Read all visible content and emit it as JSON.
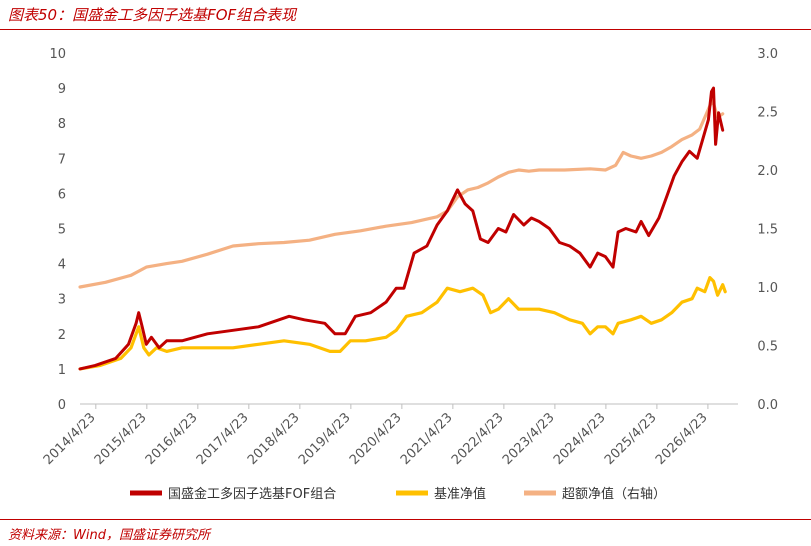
{
  "header": {
    "title": "图表50：国盛金工多因子选基FOF组合表现"
  },
  "footer": {
    "source": "资料来源：Wind，国盛证券研究所"
  },
  "chart_data": {
    "type": "line",
    "title": "",
    "xlabel": "",
    "ylabel": "",
    "x_ticks": [
      "2014/4/23",
      "2015/4/23",
      "2016/4/23",
      "2017/4/23",
      "2018/4/23",
      "2019/4/23",
      "2020/4/23",
      "2021/4/23",
      "2022/4/23",
      "2023/4/23",
      "2024/4/23",
      "2025/4/23",
      "2026/4/23"
    ],
    "y_left": {
      "min": 0,
      "max": 10,
      "ticks": [
        "0",
        "1",
        "2",
        "3",
        "4",
        "5",
        "6",
        "7",
        "8",
        "9",
        "10"
      ]
    },
    "y_right": {
      "min": 0,
      "max": 3.0,
      "ticks": [
        "0.0",
        "0.5",
        "1.0",
        "1.5",
        "2.0",
        "2.5",
        "3.0"
      ]
    },
    "x_range": [
      2014.0,
      2026.9
    ],
    "series": [
      {
        "name": "国盛金工多因子选基FOF组合",
        "axis": "left",
        "color": "#c00000",
        "points": [
          [
            2014.0,
            1.0
          ],
          [
            2014.3,
            1.1
          ],
          [
            2014.7,
            1.3
          ],
          [
            2014.95,
            1.7
          ],
          [
            2015.1,
            2.3
          ],
          [
            2015.15,
            2.6
          ],
          [
            2015.22,
            2.2
          ],
          [
            2015.3,
            1.7
          ],
          [
            2015.4,
            1.9
          ],
          [
            2015.55,
            1.6
          ],
          [
            2015.7,
            1.8
          ],
          [
            2016.0,
            1.8
          ],
          [
            2016.5,
            2.0
          ],
          [
            2017.0,
            2.1
          ],
          [
            2017.5,
            2.2
          ],
          [
            2017.9,
            2.4
          ],
          [
            2018.1,
            2.5
          ],
          [
            2018.4,
            2.4
          ],
          [
            2018.8,
            2.3
          ],
          [
            2019.0,
            2.0
          ],
          [
            2019.2,
            2.0
          ],
          [
            2019.4,
            2.5
          ],
          [
            2019.7,
            2.6
          ],
          [
            2020.0,
            2.9
          ],
          [
            2020.2,
            3.3
          ],
          [
            2020.35,
            3.3
          ],
          [
            2020.55,
            4.3
          ],
          [
            2020.8,
            4.5
          ],
          [
            2021.0,
            5.1
          ],
          [
            2021.2,
            5.5
          ],
          [
            2021.4,
            6.1
          ],
          [
            2021.55,
            5.7
          ],
          [
            2021.7,
            5.5
          ],
          [
            2021.85,
            4.7
          ],
          [
            2022.0,
            4.6
          ],
          [
            2022.2,
            5.0
          ],
          [
            2022.35,
            4.9
          ],
          [
            2022.5,
            5.4
          ],
          [
            2022.7,
            5.1
          ],
          [
            2022.85,
            5.3
          ],
          [
            2023.0,
            5.2
          ],
          [
            2023.2,
            5.0
          ],
          [
            2023.4,
            4.6
          ],
          [
            2023.6,
            4.5
          ],
          [
            2023.8,
            4.3
          ],
          [
            2024.0,
            3.9
          ],
          [
            2024.15,
            4.3
          ],
          [
            2024.3,
            4.2
          ],
          [
            2024.45,
            3.9
          ],
          [
            2024.55,
            4.9
          ],
          [
            2024.7,
            5.0
          ],
          [
            2024.9,
            4.9
          ],
          [
            2025.0,
            5.2
          ],
          [
            2025.15,
            4.8
          ],
          [
            2025.35,
            5.3
          ],
          [
            2025.5,
            5.9
          ],
          [
            2025.65,
            6.5
          ],
          [
            2025.8,
            6.9
          ],
          [
            2025.95,
            7.2
          ],
          [
            2026.1,
            7.0
          ],
          [
            2026.2,
            7.5
          ],
          [
            2026.32,
            8.1
          ],
          [
            2026.38,
            8.9
          ],
          [
            2026.42,
            9.0
          ],
          [
            2026.46,
            7.4
          ],
          [
            2026.52,
            8.3
          ],
          [
            2026.6,
            7.8
          ]
        ]
      },
      {
        "name": "基准净值",
        "axis": "left",
        "color": "#ffc000",
        "points": [
          [
            2014.0,
            1.0
          ],
          [
            2014.4,
            1.1
          ],
          [
            2014.8,
            1.3
          ],
          [
            2015.0,
            1.6
          ],
          [
            2015.15,
            2.2
          ],
          [
            2015.25,
            1.6
          ],
          [
            2015.35,
            1.4
          ],
          [
            2015.5,
            1.6
          ],
          [
            2015.7,
            1.5
          ],
          [
            2016.0,
            1.6
          ],
          [
            2016.5,
            1.6
          ],
          [
            2017.0,
            1.6
          ],
          [
            2017.5,
            1.7
          ],
          [
            2018.0,
            1.8
          ],
          [
            2018.5,
            1.7
          ],
          [
            2018.9,
            1.5
          ],
          [
            2019.1,
            1.5
          ],
          [
            2019.3,
            1.8
          ],
          [
            2019.6,
            1.8
          ],
          [
            2020.0,
            1.9
          ],
          [
            2020.2,
            2.1
          ],
          [
            2020.4,
            2.5
          ],
          [
            2020.7,
            2.6
          ],
          [
            2021.0,
            2.9
          ],
          [
            2021.2,
            3.3
          ],
          [
            2021.45,
            3.2
          ],
          [
            2021.7,
            3.3
          ],
          [
            2021.9,
            3.1
          ],
          [
            2022.05,
            2.6
          ],
          [
            2022.2,
            2.7
          ],
          [
            2022.4,
            3.0
          ],
          [
            2022.6,
            2.7
          ],
          [
            2022.8,
            2.7
          ],
          [
            2023.0,
            2.7
          ],
          [
            2023.3,
            2.6
          ],
          [
            2023.6,
            2.4
          ],
          [
            2023.85,
            2.3
          ],
          [
            2024.0,
            2.0
          ],
          [
            2024.15,
            2.2
          ],
          [
            2024.3,
            2.2
          ],
          [
            2024.45,
            2.0
          ],
          [
            2024.55,
            2.3
          ],
          [
            2024.8,
            2.4
          ],
          [
            2025.0,
            2.5
          ],
          [
            2025.2,
            2.3
          ],
          [
            2025.4,
            2.4
          ],
          [
            2025.6,
            2.6
          ],
          [
            2025.8,
            2.9
          ],
          [
            2026.0,
            3.0
          ],
          [
            2026.1,
            3.3
          ],
          [
            2026.25,
            3.2
          ],
          [
            2026.35,
            3.6
          ],
          [
            2026.42,
            3.5
          ],
          [
            2026.5,
            3.1
          ],
          [
            2026.6,
            3.4
          ],
          [
            2026.65,
            3.2
          ]
        ]
      },
      {
        "name": "超额净值（右轴）",
        "axis": "right",
        "color": "#f4b183",
        "points": [
          [
            2014.0,
            1.0
          ],
          [
            2014.5,
            1.04
          ],
          [
            2015.0,
            1.1
          ],
          [
            2015.3,
            1.17
          ],
          [
            2015.7,
            1.2
          ],
          [
            2016.0,
            1.22
          ],
          [
            2016.5,
            1.28
          ],
          [
            2017.0,
            1.35
          ],
          [
            2017.5,
            1.37
          ],
          [
            2018.0,
            1.38
          ],
          [
            2018.5,
            1.4
          ],
          [
            2019.0,
            1.45
          ],
          [
            2019.5,
            1.48
          ],
          [
            2020.0,
            1.52
          ],
          [
            2020.5,
            1.55
          ],
          [
            2020.8,
            1.58
          ],
          [
            2021.0,
            1.6
          ],
          [
            2021.2,
            1.65
          ],
          [
            2021.4,
            1.77
          ],
          [
            2021.6,
            1.83
          ],
          [
            2021.8,
            1.85
          ],
          [
            2022.0,
            1.89
          ],
          [
            2022.2,
            1.94
          ],
          [
            2022.4,
            1.98
          ],
          [
            2022.6,
            2.0
          ],
          [
            2022.8,
            1.99
          ],
          [
            2023.0,
            2.0
          ],
          [
            2023.5,
            2.0
          ],
          [
            2024.0,
            2.01
          ],
          [
            2024.3,
            2.0
          ],
          [
            2024.5,
            2.04
          ],
          [
            2024.65,
            2.15
          ],
          [
            2024.8,
            2.12
          ],
          [
            2025.0,
            2.1
          ],
          [
            2025.2,
            2.12
          ],
          [
            2025.4,
            2.15
          ],
          [
            2025.6,
            2.2
          ],
          [
            2025.8,
            2.26
          ],
          [
            2026.0,
            2.3
          ],
          [
            2026.15,
            2.35
          ],
          [
            2026.3,
            2.5
          ],
          [
            2026.4,
            2.6
          ],
          [
            2026.5,
            2.45
          ],
          [
            2026.6,
            2.48
          ]
        ]
      }
    ],
    "legend": [
      "国盛金工多因子选基FOF组合",
      "基准净值",
      "超额净值（右轴）"
    ],
    "legend_position": "bottom",
    "grid": false
  }
}
